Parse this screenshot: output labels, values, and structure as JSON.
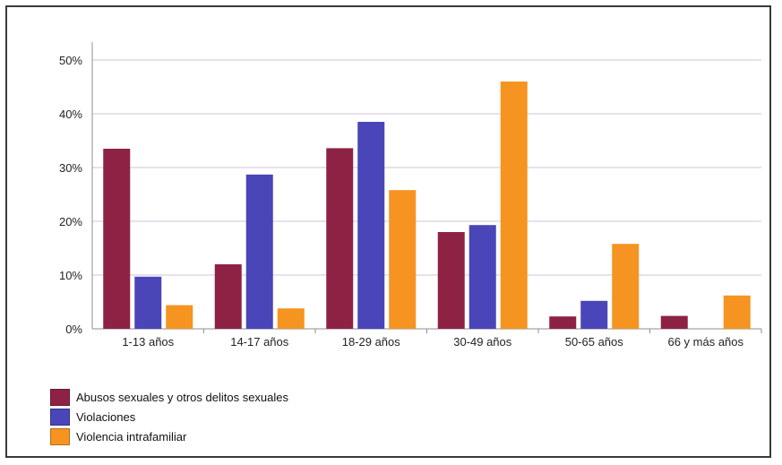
{
  "chart_data": {
    "type": "bar",
    "categories": [
      "1-13 años",
      "14-17 años",
      "18-29 años",
      "30-49 años",
      "50-65 años",
      "66 y más años"
    ],
    "series": [
      {
        "name": "Abusos sexuales y otros delitos sexuales",
        "color": "#8e2244",
        "values": [
          33.5,
          12.0,
          33.6,
          18.0,
          2.3,
          2.4
        ]
      },
      {
        "name": "Violaciones",
        "color": "#4a45b8",
        "values": [
          9.7,
          28.7,
          38.5,
          19.3,
          5.2,
          0
        ]
      },
      {
        "name": "Violencia intrafamiliar",
        "color": "#f59420",
        "values": [
          4.4,
          3.8,
          25.8,
          46.0,
          15.8,
          6.2
        ]
      }
    ],
    "yticks": [
      "0%",
      "10%",
      "20%",
      "30%",
      "40%",
      "50%"
    ],
    "ylim": [
      0,
      50
    ],
    "grid": true,
    "legend_position": "bottom-left"
  }
}
